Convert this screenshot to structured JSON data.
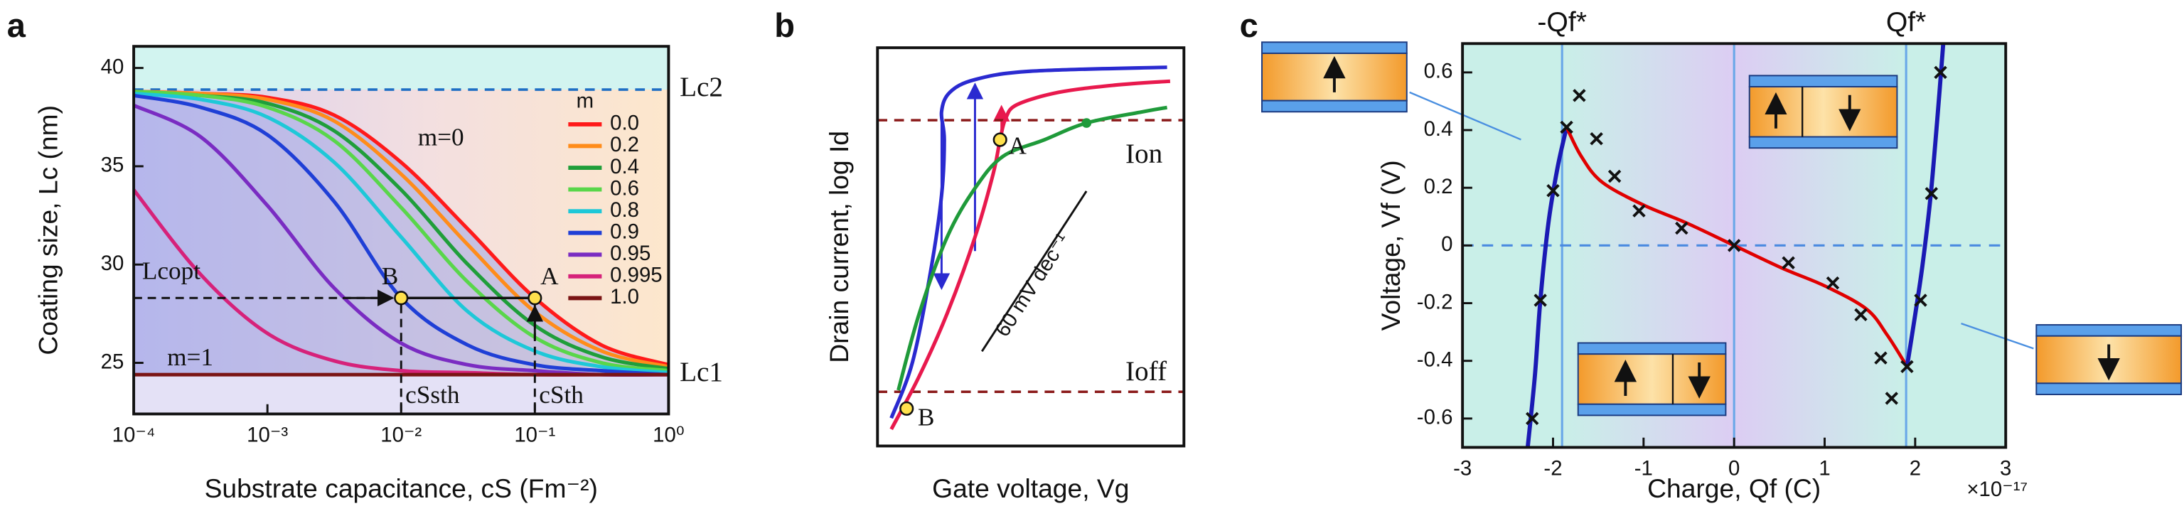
{
  "chart_data": [
    {
      "type": "line",
      "panel_label": "a",
      "xlabel": "Substrate capacitance, cS (Fm⁻²)",
      "ylabel": "Coating size, Lc (nm)",
      "xscale": "log",
      "xlim": [
        0.0001,
        1
      ],
      "xticks": [
        {
          "value": 0.0001,
          "label": "10⁻⁴"
        },
        {
          "value": 0.001,
          "label": "10⁻³"
        },
        {
          "value": 0.01,
          "label": "10⁻²"
        },
        {
          "value": 0.1,
          "label": "10⁻¹"
        },
        {
          "value": 1,
          "label": "10⁰"
        }
      ],
      "ylim": [
        22.4,
        41.1
      ],
      "yticks": [
        25,
        30,
        35,
        40
      ],
      "x": [
        0.0001,
        0.000316,
        0.001,
        0.00316,
        0.01,
        0.0316,
        0.1,
        0.316,
        1
      ],
      "legend_title": "m",
      "legend_position": "upper right",
      "area_fill": "#8d9be6",
      "series": [
        {
          "name": "0.0",
          "color": "#ff1a1a",
          "values": [
            38.8,
            38.7,
            38.5,
            37.6,
            35.2,
            31.8,
            28.3,
            25.9,
            24.9
          ]
        },
        {
          "name": "0.2",
          "color": "#ff8c1a",
          "values": [
            38.8,
            38.7,
            38.4,
            37.3,
            34.6,
            31.0,
            27.6,
            25.6,
            24.8
          ]
        },
        {
          "name": "0.4",
          "color": "#1f9e3a",
          "values": [
            38.8,
            38.6,
            38.2,
            36.8,
            33.8,
            30.0,
            26.9,
            25.3,
            24.7
          ]
        },
        {
          "name": "0.6",
          "color": "#59d64a",
          "values": [
            38.8,
            38.6,
            38.0,
            36.3,
            32.9,
            29.1,
            26.3,
            25.0,
            24.6
          ]
        },
        {
          "name": "0.8",
          "color": "#1ec8d8",
          "values": [
            38.7,
            38.4,
            37.5,
            35.2,
            31.4,
            27.6,
            25.6,
            24.8,
            24.5
          ]
        },
        {
          "name": "0.9",
          "color": "#1f3fd6",
          "values": [
            38.6,
            38.0,
            36.6,
            33.2,
            28.3,
            25.9,
            24.9,
            24.6,
            24.4
          ]
        },
        {
          "name": "0.95",
          "color": "#7a2cc2",
          "values": [
            38.1,
            36.5,
            33.0,
            28.8,
            26.0,
            24.9,
            24.6,
            24.4,
            24.4
          ]
        },
        {
          "name": "0.995",
          "color": "#d6227a",
          "values": [
            33.8,
            29.5,
            26.5,
            25.1,
            24.6,
            24.5,
            24.4,
            24.4,
            24.4
          ]
        },
        {
          "name": "1.0",
          "color": "#7a1414",
          "values": [
            24.4,
            24.4,
            24.4,
            24.4,
            24.4,
            24.4,
            24.4,
            24.4,
            24.4
          ]
        }
      ],
      "reference_lines": [
        {
          "label": "Lc2",
          "y": 38.9,
          "color": "#1f6fc4",
          "style": "dashed",
          "fill_above": "#d2f4f0"
        },
        {
          "label": "Lc1",
          "y": 24.4,
          "style": "none",
          "fill_below": "#e4e1f6"
        }
      ],
      "point_color": "#ffe14d",
      "points": [
        {
          "label": "A",
          "x": 0.1,
          "y": 28.3
        },
        {
          "label": "B",
          "x": 0.01,
          "y": 28.3
        }
      ],
      "guides": true,
      "annotations": {
        "m0": "m=0",
        "m1": "m=1",
        "opt": "Lcopt",
        "sth": "cSsth",
        "th": "cSth"
      }
    },
    {
      "type": "line",
      "panel_label": "b",
      "xlabel": "Gate voltage, Vg",
      "ylabel": "Drain current, log Id",
      "xlim": [
        0,
        10
      ],
      "ylim": [
        0,
        10
      ],
      "series": [
        {
          "color": "#e8194d",
          "x": [
            0.45,
            1.36,
            2.27,
            3.18,
            3.77,
            4.0,
            4.18,
            4.55,
            5.91,
            7.73,
            9.55
          ],
          "values": [
            0.42,
            1.75,
            3.32,
            5.24,
            6.82,
            7.69,
            8.22,
            8.57,
            8.88,
            9.06,
            9.16
          ]
        },
        {
          "color": "#2a2ad0",
          "x": [
            0.45,
            1.14,
            1.73,
            2.09,
            2.18,
            2.09,
            2.36,
            3.18,
            5.0,
            9.45
          ],
          "values": [
            0.7,
            2.1,
            4.37,
            6.29,
            7.69,
            8.39,
            8.88,
            9.2,
            9.41,
            9.51
          ]
        },
        {
          "color": "#1f9a3a",
          "x": [
            0.68,
            1.36,
            2.27,
            3.18,
            4.09,
            5.45,
            6.82,
            8.64,
            9.45
          ],
          "values": [
            1.4,
            3.32,
            5.24,
            6.47,
            7.27,
            7.69,
            8.11,
            8.39,
            8.5
          ]
        }
      ],
      "reference_lines": [
        {
          "label": "Ion",
          "y": 8.18,
          "color": "#8b1a1a",
          "style": "dashed"
        },
        {
          "label": "Ioff",
          "y": 1.36,
          "color": "#8b1a1a",
          "style": "dashed"
        }
      ],
      "point_color": "#ffe14d",
      "points": [
        {
          "label": "A",
          "x": 4.0,
          "y": 7.69
        },
        {
          "label": "B",
          "x": 0.95,
          "y": 0.94
        },
        {
          "x": 6.82,
          "y": 8.11,
          "color": "#1f9a3a"
        }
      ],
      "annotations": {
        "slope": "60 mV dec⁻¹"
      }
    },
    {
      "type": "scatter",
      "panel_label": "c",
      "xlabel": "Charge, Qf (C)",
      "ylabel": "Voltage, Vf (V)",
      "xlim": [
        -3,
        3
      ],
      "xticks": [
        -3,
        -2,
        -1,
        0,
        1,
        2,
        3
      ],
      "ylim": [
        -0.7,
        0.7
      ],
      "yticks": [
        -0.6,
        -0.4,
        -0.2,
        0,
        0.2,
        0.4,
        0.6
      ],
      "marker": "x",
      "marker_color": "#111111",
      "x": [
        -2.23,
        -2.14,
        -2.0,
        -1.85,
        -1.71,
        -1.52,
        -1.32,
        -1.05,
        -0.58,
        0.0,
        0.6,
        1.09,
        1.4,
        1.62,
        1.74,
        1.91,
        2.06,
        2.18,
        2.28
      ],
      "values": [
        -0.6,
        -0.19,
        0.19,
        0.41,
        0.52,
        0.37,
        0.24,
        0.12,
        0.06,
        0.0,
        -0.06,
        -0.13,
        -0.24,
        -0.39,
        -0.53,
        -0.42,
        -0.19,
        0.18,
        0.6
      ],
      "curves": [
        {
          "color": "#1a1ab4",
          "x": [
            -2.28,
            -2.2,
            -2.14,
            -2.05,
            -1.95,
            -1.85
          ],
          "values": [
            -0.7,
            -0.45,
            -0.19,
            0.08,
            0.27,
            0.41
          ]
        },
        {
          "color": "#e00000",
          "x": [
            -1.85,
            -1.69,
            -1.46,
            -1.0,
            -0.54,
            0,
            0.54,
            1.0,
            1.46,
            1.69,
            1.91
          ],
          "values": [
            0.41,
            0.31,
            0.22,
            0.14,
            0.08,
            0,
            -0.08,
            -0.14,
            -0.22,
            -0.31,
            -0.42
          ]
        },
        {
          "color": "#1a1ab4",
          "x": [
            1.91,
            2.0,
            2.08,
            2.17,
            2.25,
            2.31
          ],
          "values": [
            -0.42,
            -0.24,
            -0.07,
            0.17,
            0.46,
            0.7
          ]
        }
      ],
      "vlines": [
        {
          "label": "-Qf*",
          "x": -1.9
        },
        {
          "label": "Qf*",
          "x": 1.9
        }
      ],
      "vline_color": "#6aa8e8",
      "zero_line_color": "#4a8ae0",
      "x_multiplier": "×10⁻¹⁷"
    }
  ]
}
